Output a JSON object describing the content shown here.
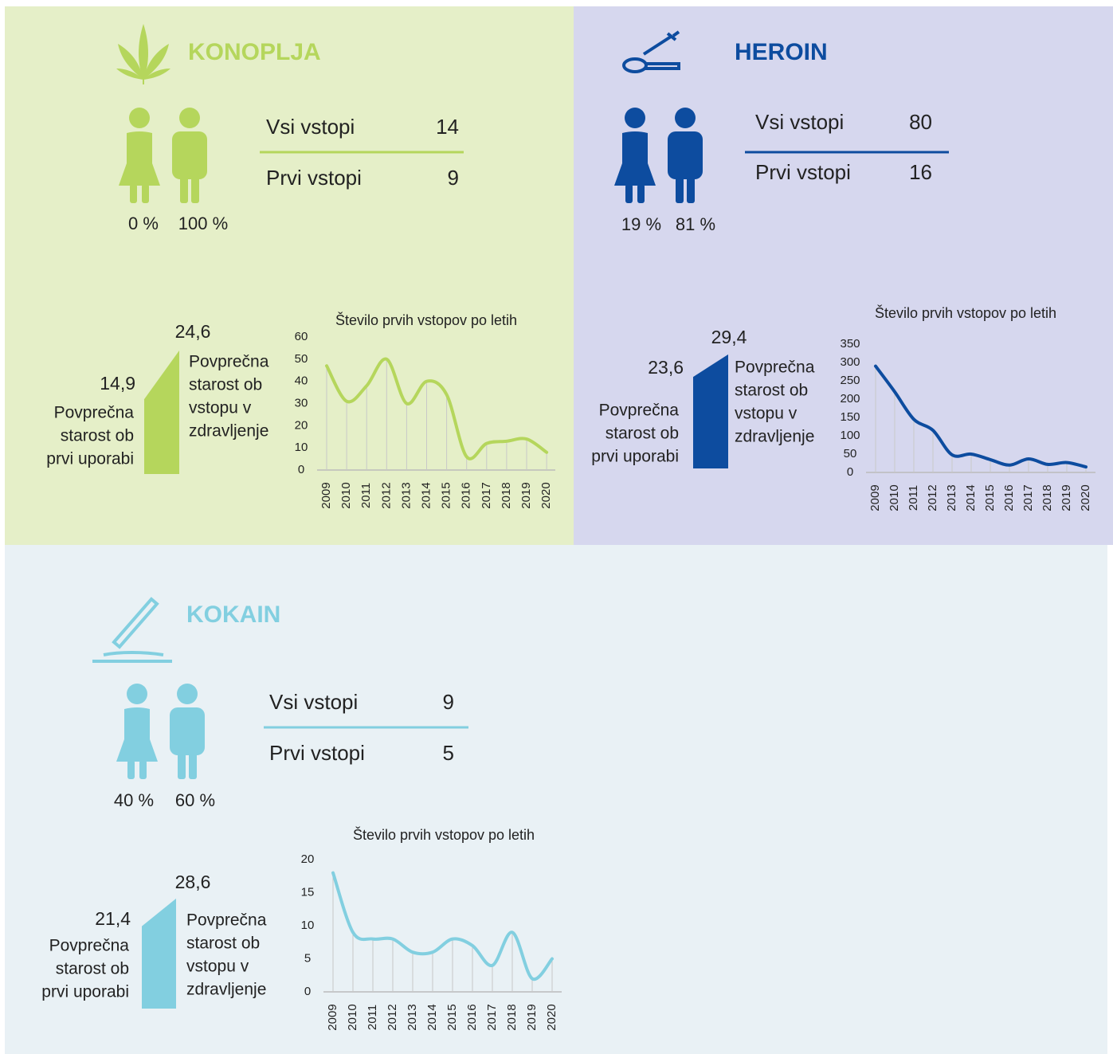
{
  "panels": [
    {
      "title": "KONOPLJA",
      "stats": [
        {
          "label": "Vsi vstopi",
          "value": 14
        },
        {
          "label": "Prvi vstopi",
          "value": 9
        }
      ],
      "female_pct": {
        "value": 0,
        "label": "0 %"
      },
      "male_pct": {
        "value": 100,
        "label": "100 %"
      },
      "age_first": {
        "value": 14.9,
        "label": "14,9"
      },
      "age_first_label": [
        "Povprečna",
        "starost ob",
        "prvi uporabi"
      ],
      "age_entry": {
        "value": 24.6,
        "label": "24,6"
      },
      "age_entry_label": [
        "Povprečna",
        "starost ob",
        "vstopu v",
        "zdravljenje"
      ]
    },
    {
      "title": "HEROIN",
      "stats": [
        {
          "label": "Vsi vstopi",
          "value": 80
        },
        {
          "label": "Prvi vstopi",
          "value": 16
        }
      ],
      "female_pct": {
        "value": 19,
        "label": "19 %"
      },
      "male_pct": {
        "value": 81,
        "label": "81 %"
      },
      "age_first": {
        "value": 23.6,
        "label": "23,6"
      },
      "age_first_label": [
        "Povprečna",
        "starost ob",
        "prvi uporabi"
      ],
      "age_entry": {
        "value": 29.4,
        "label": "29,4"
      },
      "age_entry_label": [
        "Povprečna",
        "starost ob",
        "vstopu v",
        "zdravljenje"
      ]
    },
    {
      "title": "KOKAIN",
      "stats": [
        {
          "label": "Vsi vstopi",
          "value": 9
        },
        {
          "label": "Prvi vstopi",
          "value": 5
        }
      ],
      "female_pct": {
        "value": 40,
        "label": "40 %"
      },
      "male_pct": {
        "value": 60,
        "label": "60 %"
      },
      "age_first": {
        "value": 21.4,
        "label": "21,4"
      },
      "age_first_label": [
        "Povprečna",
        "starost ob",
        "prvi uporabi"
      ],
      "age_entry": {
        "value": 28.6,
        "label": "28,6"
      },
      "age_entry_label": [
        "Povprečna",
        "starost ob",
        "vstopu v",
        "zdravljenje"
      ]
    }
  ],
  "chart_data": [
    {
      "type": "line",
      "title": "Število prvih vstopov po letih",
      "color": "#b5d65c",
      "categories": [
        "2009",
        "2010",
        "2011",
        "2012",
        "2013",
        "2014",
        "2015",
        "2016",
        "2017",
        "2018",
        "2019",
        "2020"
      ],
      "values": [
        47,
        31,
        38,
        50,
        30,
        40,
        34,
        6,
        12,
        13,
        14,
        8
      ],
      "ylim": [
        0,
        60
      ],
      "yticks": [
        0,
        10,
        20,
        30,
        40,
        50,
        60
      ]
    },
    {
      "type": "line",
      "title": "Število prvih vstopov po letih",
      "color": "#0d4c9f",
      "categories": [
        "2009",
        "2010",
        "2011",
        "2012",
        "2013",
        "2014",
        "2015",
        "2016",
        "2017",
        "2018",
        "2019",
        "2020"
      ],
      "values": [
        290,
        220,
        145,
        115,
        48,
        50,
        35,
        20,
        37,
        22,
        27,
        15
      ],
      "ylim": [
        0,
        350
      ],
      "yticks": [
        0,
        50,
        100,
        150,
        200,
        250,
        300,
        350
      ]
    },
    {
      "type": "line",
      "title": "Število prvih vstopov po letih",
      "color": "#82cfe0",
      "categories": [
        "2009",
        "2010",
        "2011",
        "2012",
        "2013",
        "2014",
        "2015",
        "2016",
        "2017",
        "2018",
        "2019",
        "2020"
      ],
      "values": [
        18,
        9,
        8,
        8,
        6,
        6,
        8,
        7,
        4,
        9,
        2,
        5
      ],
      "ylim": [
        0,
        20
      ],
      "yticks": [
        0,
        5,
        10,
        15,
        20
      ]
    }
  ]
}
